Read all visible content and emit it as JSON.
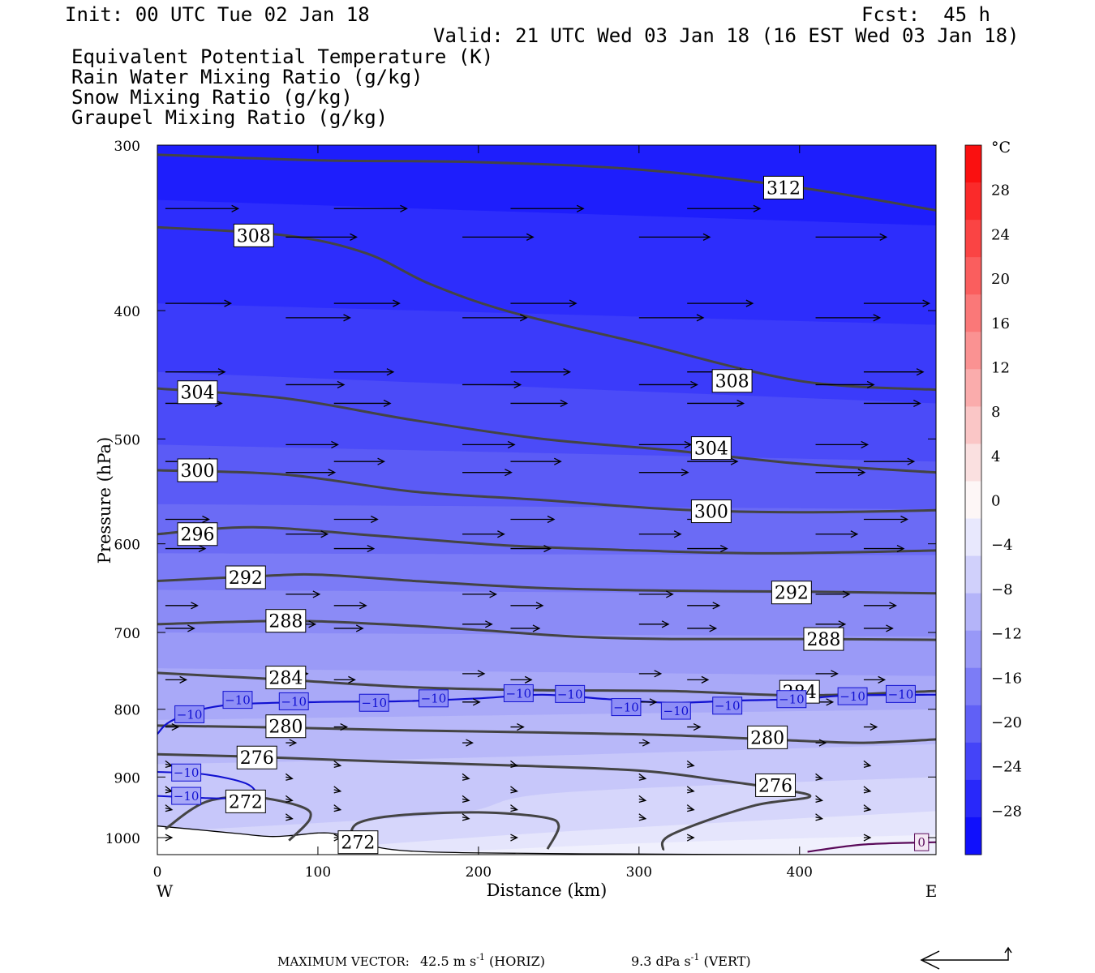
{
  "header": {
    "init": "Init: 00 UTC Tue 02 Jan 18",
    "fcst": "Fcst:  45 h",
    "valid": "Valid: 21 UTC Wed 03 Jan 18 (16 EST Wed 03 Jan 18)",
    "fields": [
      {
        "label": "Equivalent Potential Temperature (K)",
        "color": "#555555"
      },
      {
        "label": "Rain Water Mixing Ratio (g/kg)",
        "color": "#0a7a0a"
      },
      {
        "label": "Snow Mixing Ratio (g/kg)",
        "color": "#f08a50"
      },
      {
        "label": "Graupel Mixing Ratio (g/kg)",
        "color": "#f08ae0"
      }
    ]
  },
  "axes": {
    "ylabel": "Pressure (hPa)",
    "xlabel": "Distance (km)",
    "west_label": "W",
    "east_label": "E",
    "y_ticks": [
      "300",
      "400",
      "500",
      "600",
      "700",
      "800",
      "900",
      "1000"
    ],
    "x_ticks": [
      "0",
      "100",
      "200",
      "300",
      "400"
    ]
  },
  "colorbar": {
    "unit": "°C",
    "labels": [
      "28",
      "24",
      "20",
      "16",
      "12",
      "8",
      "4",
      "0",
      "−4",
      "−8",
      "−12",
      "−16",
      "−20",
      "−24",
      "−28"
    ]
  },
  "footer": {
    "max_vector_label": "MAXIMUM VECTOR:",
    "horiz_value": "42.5 m s",
    "horiz_unit": " (HORIZ)",
    "vert_value": "9.3 dPa s",
    "vert_unit": " (VERT)",
    "exponent": "-1"
  },
  "chart_data": {
    "type": "cross-section",
    "x_range_km": [
      0,
      485
    ],
    "y_range_hpa": [
      300,
      1030
    ],
    "y_scale": "log-pressure",
    "theta_e_contours": [
      {
        "value": "312",
        "points": [
          [
            0,
            305
          ],
          [
            100,
            308
          ],
          [
            200,
            309
          ],
          [
            300,
            313
          ],
          [
            400,
            323
          ],
          [
            485,
            336
          ]
        ],
        "labels": [
          [
            390,
            323
          ]
        ]
      },
      {
        "value": "308",
        "points": [
          [
            0,
            346
          ],
          [
            80,
            351
          ],
          [
            130,
            362
          ],
          [
            170,
            382
          ],
          [
            220,
            401
          ],
          [
            300,
            423
          ],
          [
            400,
            452
          ],
          [
            485,
            459
          ]
        ],
        "labels": [
          [
            60,
            351
          ],
          [
            358,
            452
          ]
        ]
      },
      {
        "value": "304",
        "points": [
          [
            0,
            458
          ],
          [
            80,
            466
          ],
          [
            160,
            484
          ],
          [
            240,
            500
          ],
          [
            320,
            510
          ],
          [
            400,
            522
          ],
          [
            485,
            530
          ]
        ],
        "labels": [
          [
            25,
            461
          ],
          [
            345,
            508
          ]
        ]
      },
      {
        "value": "300",
        "points": [
          [
            0,
            528
          ],
          [
            80,
            532
          ],
          [
            160,
            548
          ],
          [
            240,
            556
          ],
          [
            320,
            565
          ],
          [
            400,
            568
          ],
          [
            485,
            566
          ]
        ],
        "labels": [
          [
            25,
            528
          ],
          [
            345,
            567
          ]
        ]
      },
      {
        "value": "296",
        "points": [
          [
            0,
            590
          ],
          [
            60,
            583
          ],
          [
            140,
            592
          ],
          [
            220,
            602
          ],
          [
            300,
            607
          ],
          [
            380,
            610
          ],
          [
            485,
            607
          ]
        ],
        "labels": [
          [
            25,
            590
          ]
        ]
      },
      {
        "value": "292",
        "points": [
          [
            0,
            640
          ],
          [
            60,
            635
          ],
          [
            100,
            633
          ],
          [
            160,
            640
          ],
          [
            240,
            648
          ],
          [
            320,
            651
          ],
          [
            400,
            652
          ],
          [
            485,
            654
          ]
        ],
        "labels": [
          [
            55,
            636
          ],
          [
            395,
            653
          ]
        ]
      },
      {
        "value": "288",
        "points": [
          [
            0,
            690
          ],
          [
            80,
            686
          ],
          [
            140,
            690
          ],
          [
            200,
            697
          ],
          [
            260,
            705
          ],
          [
            320,
            708
          ],
          [
            400,
            708
          ],
          [
            485,
            709
          ]
        ],
        "labels": [
          [
            80,
            686
          ],
          [
            415,
            708
          ]
        ]
      },
      {
        "value": "284",
        "points": [
          [
            0,
            751
          ],
          [
            80,
            760
          ],
          [
            160,
            770
          ],
          [
            240,
            774
          ],
          [
            320,
            775
          ],
          [
            400,
            781
          ],
          [
            485,
            775
          ]
        ],
        "labels": [
          [
            80,
            757
          ],
          [
            400,
            776
          ]
        ]
      },
      {
        "value": "280",
        "points": [
          [
            0,
            823
          ],
          [
            80,
            826
          ],
          [
            160,
            830
          ],
          [
            240,
            833
          ],
          [
            320,
            837
          ],
          [
            400,
            845
          ],
          [
            440,
            848
          ],
          [
            485,
            843
          ]
        ],
        "labels": [
          [
            80,
            824
          ],
          [
            380,
            840
          ]
        ]
      },
      {
        "value": "276",
        "points": [
          [
            0,
            865
          ],
          [
            60,
            869
          ],
          [
            140,
            876
          ],
          [
            220,
            882
          ],
          [
            300,
            890
          ],
          [
            350,
            905
          ],
          [
            390,
            920
          ],
          [
            406,
            932
          ],
          [
            370,
            947
          ],
          [
            320,
            995
          ],
          [
            315,
            1022
          ]
        ],
        "labels": [
          [
            62,
            870
          ],
          [
            385,
            913
          ]
        ]
      },
      {
        "value": "272",
        "points": [
          [
            5,
            985
          ],
          [
            30,
            940
          ],
          [
            60,
            932
          ],
          [
            90,
            948
          ],
          [
            95,
            968
          ],
          [
            82,
            1005
          ]
        ],
        "labels": [
          [
            55,
            939
          ],
          [
            125,
            1008
          ]
        ]
      },
      {
        "value": "272",
        "points": [
          [
            120,
            1000
          ],
          [
            125,
            975
          ],
          [
            150,
            962
          ],
          [
            200,
            957
          ],
          [
            240,
            965
          ],
          [
            250,
            980
          ],
          [
            243,
            1020
          ]
        ],
        "labels": []
      }
    ],
    "isotherm_minus10_c": {
      "points": [
        [
          0,
          835
        ],
        [
          10,
          815
        ],
        [
          40,
          795
        ],
        [
          100,
          790
        ],
        [
          150,
          789
        ],
        [
          200,
          785
        ],
        [
          240,
          780
        ],
        [
          280,
          786
        ],
        [
          320,
          791
        ],
        [
          360,
          788
        ],
        [
          400,
          786
        ],
        [
          430,
          781
        ],
        [
          485,
          780
        ]
      ],
      "labels": [
        [
          20,
          807
        ],
        [
          50,
          787
        ],
        [
          85,
          789
        ],
        [
          135,
          791
        ],
        [
          172,
          785
        ],
        [
          225,
          778
        ],
        [
          257,
          779
        ],
        [
          292,
          797
        ],
        [
          323,
          802
        ],
        [
          355,
          795
        ],
        [
          395,
          786
        ],
        [
          433,
          782
        ],
        [
          463,
          779
        ]
      ],
      "lower": {
        "points": [
          [
            0,
            892
          ],
          [
            30,
            896
          ],
          [
            55,
            910
          ],
          [
            60,
            928
          ],
          [
            40,
            934
          ],
          [
            0,
            930
          ]
        ],
        "labels": [
          [
            18,
            893
          ],
          [
            18,
            930
          ]
        ]
      }
    },
    "isotherm_0_c": {
      "points": [
        [
          405,
          1025
        ],
        [
          440,
          1012
        ],
        [
          485,
          1008
        ]
      ],
      "label": [
        476,
        1008
      ],
      "value": "0"
    },
    "terrain": [
      [
        0,
        980
      ],
      [
        20,
        985
      ],
      [
        50,
        993
      ],
      [
        70,
        998
      ],
      [
        85,
        996
      ],
      [
        100,
        992
      ],
      [
        112,
        994
      ],
      [
        125,
        1008
      ],
      [
        150,
        1022
      ],
      [
        200,
        1027
      ],
      [
        300,
        1029
      ],
      [
        400,
        1030
      ],
      [
        485,
        1030
      ]
    ],
    "shading_colors_cold_to_warm": [
      "#1e1efc",
      "#2d2dfc",
      "#3b3bfa",
      "#4b4bf8",
      "#5b5bf6",
      "#6b6bf5",
      "#7b7bf6",
      "#8b8bf6",
      "#9a9af7",
      "#a9a9f8",
      "#b8b8f9",
      "#c7c7fa",
      "#d6d6fb",
      "#e5e5fc",
      "#f0f0fd"
    ],
    "max_vector": {
      "horiz_m_s": 42.5,
      "vert_dpa_s": 9.3
    },
    "grid": false
  }
}
